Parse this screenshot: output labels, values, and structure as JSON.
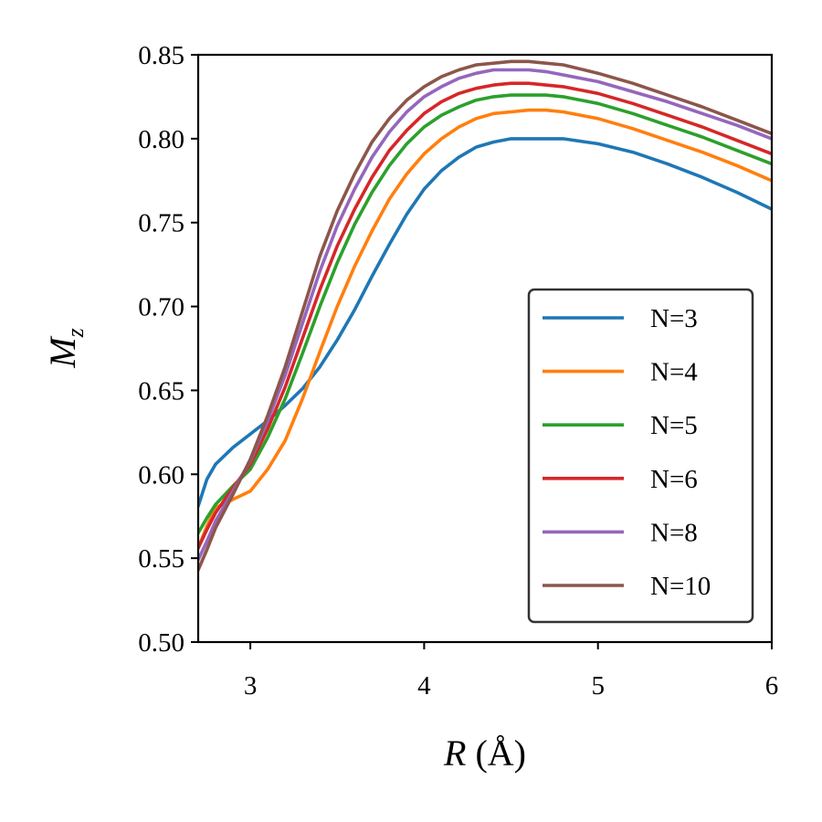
{
  "chart_data": {
    "type": "line",
    "title": "",
    "xlabel": "R (Å)",
    "xlabel_var": "R",
    "xlabel_unit": "(Å)",
    "ylabel": "M_z",
    "ylabel_var": "M",
    "ylabel_sub": "z",
    "xlim": [
      2.7,
      6.0
    ],
    "ylim": [
      0.5,
      0.85
    ],
    "xticks": [
      3,
      4,
      5,
      6
    ],
    "xtick_labels": [
      "3",
      "4",
      "5",
      "6"
    ],
    "yticks": [
      0.5,
      0.55,
      0.6,
      0.65,
      0.7,
      0.75,
      0.8,
      0.85
    ],
    "ytick_labels": [
      "0.50",
      "0.55",
      "0.60",
      "0.65",
      "0.70",
      "0.75",
      "0.80",
      "0.85"
    ],
    "grid": false,
    "legend_position": "lower-right",
    "x": [
      2.7,
      2.75,
      2.8,
      2.9,
      3.0,
      3.1,
      3.2,
      3.3,
      3.4,
      3.5,
      3.6,
      3.7,
      3.8,
      3.9,
      4.0,
      4.1,
      4.2,
      4.3,
      4.4,
      4.5,
      4.6,
      4.7,
      4.8,
      5.0,
      5.2,
      5.4,
      5.6,
      5.8,
      6.0
    ],
    "series": [
      {
        "name": "N=3",
        "color": "#1f77b4",
        "values": [
          0.581,
          0.597,
          0.606,
          0.616,
          0.624,
          0.632,
          0.641,
          0.651,
          0.664,
          0.68,
          0.698,
          0.718,
          0.737,
          0.755,
          0.77,
          0.781,
          0.789,
          0.795,
          0.798,
          0.8,
          0.8,
          0.8,
          0.8,
          0.797,
          0.792,
          0.785,
          0.777,
          0.768,
          0.758
        ]
      },
      {
        "name": "N=4",
        "color": "#ff7f0e",
        "values": [
          0.556,
          0.569,
          0.58,
          0.585,
          0.59,
          0.603,
          0.62,
          0.645,
          0.673,
          0.7,
          0.724,
          0.745,
          0.764,
          0.779,
          0.791,
          0.8,
          0.807,
          0.812,
          0.815,
          0.816,
          0.817,
          0.817,
          0.816,
          0.812,
          0.806,
          0.799,
          0.792,
          0.784,
          0.775
        ]
      },
      {
        "name": "N=5",
        "color": "#2ca02c",
        "values": [
          0.565,
          0.574,
          0.582,
          0.593,
          0.603,
          0.622,
          0.645,
          0.672,
          0.7,
          0.726,
          0.749,
          0.768,
          0.784,
          0.797,
          0.807,
          0.814,
          0.819,
          0.823,
          0.825,
          0.826,
          0.826,
          0.826,
          0.825,
          0.821,
          0.815,
          0.808,
          0.801,
          0.793,
          0.785
        ]
      },
      {
        "name": "N=6",
        "color": "#d62728",
        "values": [
          0.556,
          0.567,
          0.577,
          0.592,
          0.606,
          0.627,
          0.652,
          0.681,
          0.71,
          0.736,
          0.758,
          0.777,
          0.793,
          0.805,
          0.815,
          0.822,
          0.827,
          0.83,
          0.832,
          0.833,
          0.833,
          0.832,
          0.831,
          0.827,
          0.821,
          0.814,
          0.807,
          0.799,
          0.791
        ]
      },
      {
        "name": "N=8",
        "color": "#9467bd",
        "values": [
          0.549,
          0.56,
          0.572,
          0.59,
          0.608,
          0.632,
          0.659,
          0.69,
          0.721,
          0.748,
          0.77,
          0.789,
          0.804,
          0.816,
          0.825,
          0.831,
          0.836,
          0.839,
          0.841,
          0.841,
          0.841,
          0.84,
          0.838,
          0.834,
          0.828,
          0.822,
          0.815,
          0.808,
          0.8
        ]
      },
      {
        "name": "N=10",
        "color": "#8c564b",
        "values": [
          0.543,
          0.555,
          0.568,
          0.588,
          0.609,
          0.635,
          0.664,
          0.697,
          0.73,
          0.757,
          0.779,
          0.798,
          0.812,
          0.823,
          0.831,
          0.837,
          0.841,
          0.844,
          0.845,
          0.846,
          0.846,
          0.845,
          0.844,
          0.839,
          0.833,
          0.826,
          0.819,
          0.811,
          0.803
        ]
      }
    ]
  }
}
